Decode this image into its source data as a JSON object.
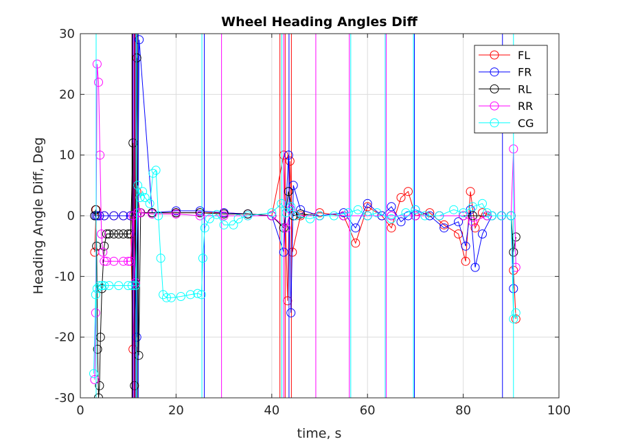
{
  "chart_data": {
    "type": "line",
    "title": "Wheel Heading Angles Diff",
    "xlabel": "time, s",
    "ylabel": "Heading Angle Diff, Deg",
    "xlim": [
      0,
      100
    ],
    "ylim": [
      -30,
      30
    ],
    "xticks": [
      0,
      20,
      40,
      60,
      80,
      100
    ],
    "yticks": [
      -30,
      -20,
      -10,
      0,
      10,
      20,
      30
    ],
    "xtick_labels": [
      "0",
      "20",
      "40",
      "60",
      "80",
      "100"
    ],
    "ytick_labels": [
      "-30",
      "-20",
      "-10",
      "0",
      "10",
      "20",
      "30"
    ],
    "grid": true,
    "legend_position": "top-right",
    "marker": "circle",
    "series": [
      {
        "name": "FL",
        "color": "#ff0000",
        "spikes": [
          10.9,
          11.4,
          41.7,
          42.8,
          44.1
        ],
        "x": [
          3.0,
          3.3,
          3.6,
          4.0,
          5.0,
          7.0,
          9.0,
          10.5,
          11.0,
          11.8,
          12.5,
          15,
          20,
          25,
          30,
          35,
          40,
          42.5,
          43.3,
          43.8,
          44.3,
          46,
          50,
          55,
          57.5,
          60,
          63,
          65,
          67,
          68.5,
          70,
          73,
          76,
          79,
          80.5,
          81.5,
          82.5,
          84,
          86,
          88,
          90,
          90.5,
          91
        ],
        "y": [
          -6,
          1,
          0,
          0,
          0,
          0,
          0,
          0,
          -22,
          4,
          0.5,
          0.5,
          0.5,
          0.5,
          0.5,
          0.3,
          0,
          10,
          -14,
          9,
          -6,
          0,
          0.5,
          0,
          -4.5,
          1.5,
          0,
          -2,
          3,
          4,
          0,
          0.5,
          -1.5,
          -3,
          -7.5,
          4,
          -2,
          0.5,
          0,
          0,
          0,
          -9,
          -17
        ]
      },
      {
        "name": "FR",
        "color": "#0000ff",
        "spikes": [
          11.0,
          11.6,
          12.1,
          25.9,
          43.6,
          69.8,
          88.2
        ],
        "x": [
          3.0,
          3.3,
          3.6,
          4.0,
          5.0,
          7.0,
          9.0,
          10.5,
          11.0,
          11.8,
          12.3,
          15,
          20,
          25,
          30,
          35,
          40,
          42.5,
          43.5,
          44.0,
          44.5,
          46,
          50,
          55,
          57.5,
          60,
          63,
          65,
          67,
          68.5,
          70,
          73,
          76,
          79,
          80.5,
          81.5,
          82.5,
          84,
          86,
          88,
          90,
          90.5
        ],
        "y": [
          0,
          0,
          0,
          0,
          0,
          0,
          0,
          0,
          0,
          -20,
          29,
          0.5,
          0.8,
          0.8,
          0.5,
          0.3,
          0,
          -6,
          10,
          -16,
          5,
          1,
          0,
          0.5,
          -2,
          2,
          0,
          1.5,
          -1,
          0,
          1,
          0,
          -2,
          -1,
          -5,
          1,
          -8.5,
          -3,
          0,
          0,
          0,
          -12
        ]
      },
      {
        "name": "RL",
        "color": "#000000",
        "spikes": [
          10.8,
          11.3,
          11.9
        ],
        "x": [
          3.0,
          3.2,
          3.4,
          3.6,
          3.8,
          4.0,
          4.2,
          4.5,
          5.0,
          5.5,
          6.0,
          7.0,
          8.0,
          9.0,
          10.0,
          10.5,
          11.0,
          11.3,
          11.8,
          12.2,
          12.6,
          15,
          20,
          25,
          30,
          35,
          40,
          42.5,
          43.5,
          44.5,
          46,
          50,
          55,
          60,
          65,
          70,
          75,
          80,
          82,
          85,
          88,
          90,
          90.5,
          91
        ],
        "y": [
          0,
          1,
          -5,
          -22,
          -30,
          -28,
          -20,
          -12,
          -5,
          -3,
          -3,
          -3,
          -3,
          -3,
          -3,
          -3,
          12,
          -28,
          26,
          -23,
          0.5,
          0.5,
          0.5,
          0.5,
          0.3,
          0.3,
          0,
          -2,
          4,
          0,
          0.3,
          0,
          0,
          0,
          0,
          0,
          0,
          0,
          0,
          0,
          0,
          0,
          -6,
          -3.5
        ]
      },
      {
        "name": "RR",
        "color": "#ff00ff",
        "spikes": [
          11.2,
          29.5,
          42.5,
          49.2,
          56.2,
          63.9
        ],
        "x": [
          3.0,
          3.2,
          3.5,
          3.8,
          4.1,
          4.4,
          4.7,
          5.0,
          5.5,
          7.0,
          9.0,
          10.0,
          10.5,
          11.0,
          11.5,
          12.0,
          12.5,
          15,
          20,
          25,
          30,
          35,
          40,
          43,
          44,
          45,
          50,
          55,
          60,
          65,
          70,
          75,
          80,
          82,
          85,
          88,
          90,
          90.5,
          91
        ],
        "y": [
          -27,
          -16,
          25,
          22,
          10,
          -3,
          -6,
          -7.5,
          -7.5,
          -7.5,
          -7.5,
          -7.5,
          -7.5,
          0,
          -11,
          0.5,
          0.5,
          0.3,
          0.3,
          0,
          0,
          0,
          0,
          -2,
          1,
          0,
          0,
          0,
          0,
          0,
          0,
          0,
          0,
          -1,
          0,
          0,
          0,
          11,
          -8.5
        ]
      },
      {
        "name": "CG",
        "color": "#00ffff",
        "spikes": [
          3.3,
          11.7,
          25.4,
          42.1,
          56.5,
          63.7,
          69.6,
          90.5
        ],
        "x": [
          2.8,
          3.2,
          3.5,
          4.0,
          4.5,
          5.0,
          6.0,
          8.0,
          10.0,
          10.8,
          11.5,
          12.0,
          12.5,
          13.0,
          13.5,
          14.5,
          15.2,
          15.8,
          16.3,
          16.8,
          17.3,
          18.0,
          19.0,
          21.0,
          23.0,
          24.5,
          25.3,
          25.6,
          26.0,
          27.0,
          28.5,
          30.0,
          32.0,
          33.0,
          35.0,
          40.0,
          42.0,
          43.0,
          44.0,
          45.0,
          48.0,
          50.0,
          53.0,
          56.0,
          58.0,
          60.0,
          62.0,
          65.0,
          68.0,
          70.0,
          72.0,
          75.0,
          78.0,
          80.0,
          82.0,
          84.0,
          85.0,
          86.0,
          88.0,
          90.0,
          90.5,
          91.0
        ],
        "y": [
          -26,
          -13,
          -12,
          -11.5,
          -11.5,
          -11.5,
          -11.5,
          -11.5,
          -11.5,
          -11.5,
          -11.5,
          5,
          3,
          4,
          3,
          2,
          7,
          7.5,
          0,
          -7,
          -13,
          -13.5,
          -13.5,
          -13.3,
          -13,
          -12.8,
          -13,
          -7,
          -2,
          -0.5,
          0.2,
          -1.5,
          -1.5,
          -0.5,
          0,
          0.5,
          2,
          0.5,
          1.5,
          0,
          -0.5,
          0,
          0,
          0.5,
          1,
          0,
          0.5,
          -0.5,
          0.5,
          1,
          0,
          0,
          1,
          0.5,
          1.5,
          2,
          0.5,
          0,
          0,
          0,
          -17,
          -16
        ]
      }
    ]
  }
}
